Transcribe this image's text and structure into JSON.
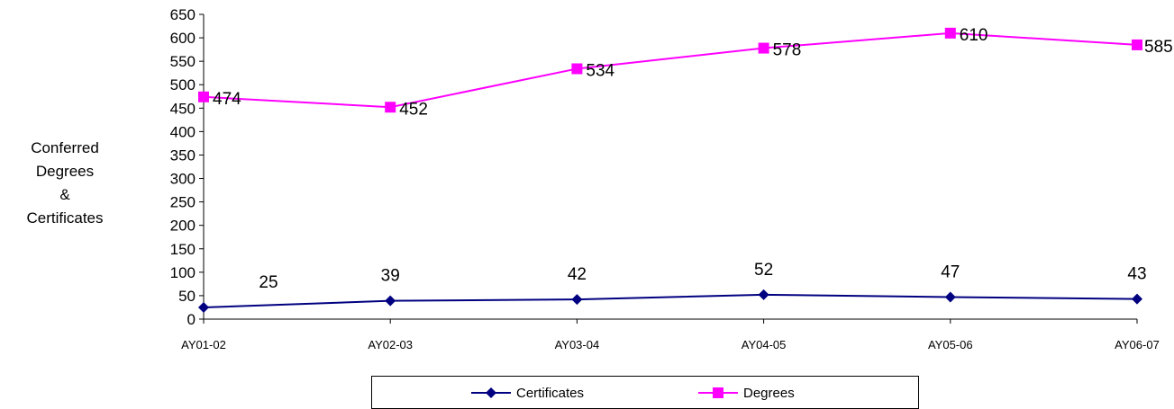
{
  "chart_data": {
    "type": "line",
    "title": "",
    "xlabel": "",
    "ylabel_lines": [
      "Conferred",
      "Degrees",
      "&",
      "Certificates"
    ],
    "categories": [
      "AY01-02",
      "AY02-03",
      "AY03-04",
      "AY04-05",
      "AY05-06",
      "AY06-07"
    ],
    "ylim": [
      0,
      650
    ],
    "yticks": [
      0,
      50,
      100,
      150,
      200,
      250,
      300,
      350,
      400,
      450,
      500,
      550,
      600,
      650
    ],
    "grid": false,
    "legend_position": "bottom",
    "series": [
      {
        "name": "Certificates",
        "values": [
          25,
          39,
          42,
          52,
          47,
          43
        ],
        "color": "#000080",
        "marker": "diamond"
      },
      {
        "name": "Degrees",
        "values": [
          474,
          452,
          534,
          578,
          610,
          585
        ],
        "color": "#FF00FF",
        "marker": "square"
      }
    ]
  }
}
